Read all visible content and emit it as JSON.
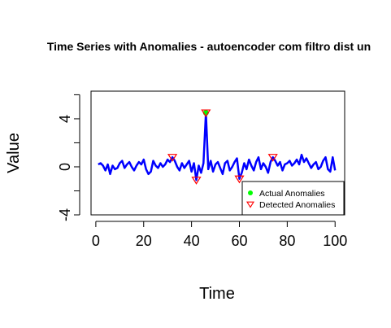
{
  "chart_data": {
    "type": "line",
    "title": "Time Series with Anomalies - autoencoder com filtro dist un",
    "xlabel": "Time",
    "ylabel": "Value",
    "xlim": [
      -2,
      104
    ],
    "ylim": [
      -4,
      6.3
    ],
    "xticks": [
      0,
      20,
      40,
      60,
      80,
      100
    ],
    "yticks": [
      -4,
      0,
      4
    ],
    "grid": false,
    "legend_position": "bottom-right",
    "series": [
      {
        "color": "#0000ff",
        "x": [
          1,
          2,
          3,
          4,
          5,
          6,
          7,
          8,
          9,
          10,
          11,
          12,
          13,
          14,
          15,
          16,
          17,
          18,
          19,
          20,
          21,
          22,
          23,
          24,
          25,
          26,
          27,
          28,
          29,
          30,
          31,
          32,
          33,
          34,
          35,
          36,
          37,
          38,
          39,
          40,
          41,
          42,
          43,
          44,
          45,
          46,
          47,
          48,
          49,
          50,
          51,
          52,
          53,
          54,
          55,
          56,
          57,
          58,
          59,
          60,
          61,
          62,
          63,
          64,
          65,
          66,
          67,
          68,
          69,
          70,
          71,
          72,
          73,
          74,
          75,
          76,
          77,
          78,
          79,
          80,
          81,
          82,
          83,
          84,
          85,
          86,
          87,
          88,
          89,
          90,
          91,
          92,
          93,
          94,
          95,
          96,
          97,
          98,
          99,
          100
        ],
        "y": [
          0.2,
          0.3,
          0.1,
          -0.3,
          0.2,
          -0.6,
          0.1,
          -0.2,
          -0.1,
          0.3,
          0.5,
          -0.1,
          0.2,
          0.4,
          0.0,
          -0.3,
          0.1,
          0.4,
          0.2,
          0.6,
          -0.2,
          -0.6,
          -0.4,
          0.5,
          0.1,
          -0.1,
          0.3,
          0.0,
          0.2,
          0.6,
          0.4,
          0.8,
          0.5,
          0.0,
          -0.3,
          0.3,
          -0.1,
          0.2,
          0.5,
          -0.4,
          0.3,
          -1.1,
          0.1,
          -0.5,
          0.3,
          4.5,
          -0.2,
          0.5,
          -0.4,
          0.2,
          0.4,
          -0.1,
          -0.6,
          0.3,
          0.5,
          -0.3,
          0.0,
          0.4,
          0.7,
          -1.0,
          -0.5,
          0.3,
          -0.2,
          0.6,
          0.1,
          -0.3,
          0.4,
          0.8,
          -0.2,
          0.3,
          0.0,
          -0.5,
          0.4,
          0.8,
          0.5,
          0.1,
          0.4,
          -0.3,
          0.2,
          0.3,
          0.5,
          0.1,
          0.3,
          0.6,
          0.2,
          1.0,
          0.4,
          0.7,
          0.3,
          -0.1,
          0.2,
          0.4,
          -0.2,
          0.0,
          0.5,
          0.8,
          -0.2,
          -0.4,
          0.8,
          -0.3
        ]
      }
    ],
    "actual_anomalies": {
      "label": "Actual Anomalies",
      "color": "#00ff00",
      "points": [
        {
          "x": 46,
          "y": 4.5
        }
      ]
    },
    "detected_anomalies": {
      "label": "Detected Anomalies",
      "color": "#ff0000",
      "points": [
        {
          "x": 32,
          "y": 0.8
        },
        {
          "x": 42,
          "y": -1.1
        },
        {
          "x": 46,
          "y": 4.5
        },
        {
          "x": 60,
          "y": -1.0
        },
        {
          "x": 74,
          "y": 0.8
        }
      ]
    }
  }
}
